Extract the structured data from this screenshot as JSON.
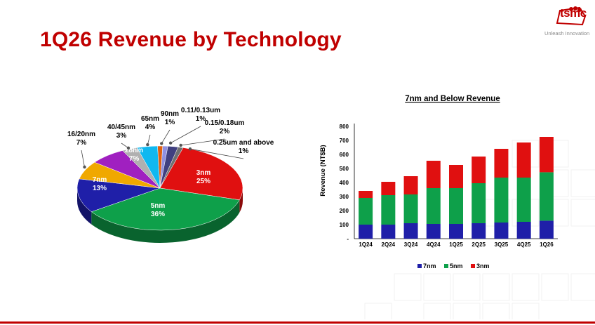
{
  "page": {
    "title": "1Q26 Revenue by Technology"
  },
  "logo": {
    "wordmark": "tsmc",
    "tagline": "Unleash Innovation"
  },
  "colors": {
    "brand_red": "#c00000",
    "n7": "#1f1fa8",
    "n5": "#0ea04a",
    "n3": "#e01010",
    "n28": "#a020c0",
    "n16_20": "#f0a800",
    "n40_45": "#b0b0b0",
    "n65": "#10b8f0",
    "n90": "#e06010",
    "n011": "#9090e0",
    "n015": "#404080",
    "n025": "#707070"
  },
  "chart_data": [
    {
      "type": "pie",
      "title": "",
      "slices": [
        {
          "label": "3nm",
          "value": 25,
          "value_label": "25%",
          "color": "#e01010"
        },
        {
          "label": "5nm",
          "value": 36,
          "value_label": "36%",
          "color": "#0ea04a"
        },
        {
          "label": "7nm",
          "value": 13,
          "value_label": "13%",
          "color": "#1f1fa8"
        },
        {
          "label": "16/20nm",
          "value": 7,
          "value_label": "7%",
          "color": "#f0a800"
        },
        {
          "label": "28nm",
          "value": 7,
          "value_label": "7%",
          "color": "#a020c0"
        },
        {
          "label": "40/45nm",
          "value": 3,
          "value_label": "3%",
          "color": "#b0b0b0"
        },
        {
          "label": "65nm",
          "value": 4,
          "value_label": "4%",
          "color": "#10b8f0"
        },
        {
          "label": "90nm",
          "value": 1,
          "value_label": "1%",
          "color": "#e06010"
        },
        {
          "label": "0.11/0.13um",
          "value": 1,
          "value_label": "1%",
          "color": "#9090e0"
        },
        {
          "label": "0.15/0.18um",
          "value": 2,
          "value_label": "2%",
          "color": "#404080"
        },
        {
          "label": "0.25um and above",
          "value": 1,
          "value_label": "1%",
          "color": "#707070"
        }
      ]
    },
    {
      "type": "bar",
      "stacked": true,
      "title": "7nm and Below Revenue",
      "xlabel": "",
      "ylabel": "Revenue (NT$B)",
      "ylim": [
        0,
        800
      ],
      "yticks": [
        "-",
        "100",
        "200",
        "300",
        "400",
        "500",
        "600",
        "700",
        "800"
      ],
      "categories": [
        "1Q24",
        "2Q24",
        "3Q24",
        "4Q24",
        "1Q25",
        "2Q25",
        "3Q25",
        "4Q25",
        "1Q26"
      ],
      "series": [
        {
          "name": "7nm",
          "color": "#1f1fa8",
          "values": [
            100,
            100,
            110,
            105,
            105,
            110,
            115,
            120,
            128
          ]
        },
        {
          "name": "5nm",
          "color": "#0ea04a",
          "values": [
            190,
            210,
            205,
            255,
            255,
            285,
            320,
            315,
            345
          ]
        },
        {
          "name": "3nm",
          "color": "#e01010",
          "values": [
            50,
            95,
            130,
            195,
            165,
            190,
            205,
            250,
            252
          ]
        }
      ],
      "legend_position": "bottom",
      "grid": false
    }
  ]
}
